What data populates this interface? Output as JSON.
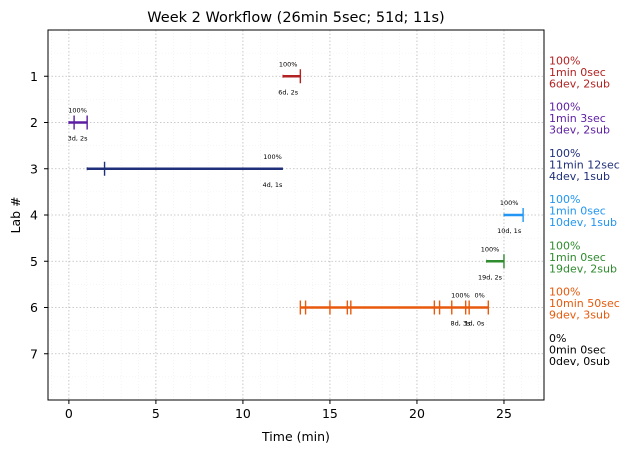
{
  "chart_data": {
    "type": "timeline",
    "title": "Week 2 Workflow (26min 5sec; 51d; 11s)",
    "xlabel": "Time (min)",
    "ylabel": "Lab #",
    "xlim": [
      -1.2,
      27.3
    ],
    "ylim": [
      8,
      0
    ],
    "xticks": [
      0,
      5,
      10,
      15,
      20,
      25
    ],
    "yticks": [
      1,
      2,
      3,
      4,
      5,
      6,
      7
    ],
    "grid": true,
    "labs": [
      {
        "lab": 1,
        "color": "#b22222",
        "start": 12.3,
        "end": 13.3,
        "markers": [
          13.3
        ],
        "pct_labels": [
          {
            "x": 12.6,
            "text": "100%"
          }
        ],
        "sub_labels": [
          {
            "x": 12.6,
            "text": "6d, 2s"
          }
        ],
        "side": [
          "100%",
          "1min 0sec",
          "6dev, 2sub"
        ]
      },
      {
        "lab": 2,
        "color": "#5b1ea2",
        "start": 0.0,
        "end": 1.05,
        "markers": [
          0.3,
          1.05
        ],
        "pct_labels": [
          {
            "x": 0.5,
            "text": "100%"
          }
        ],
        "sub_labels": [
          {
            "x": 0.5,
            "text": "3d, 2s"
          }
        ],
        "side": [
          "100%",
          "1min 3sec",
          "3dev, 2sub"
        ]
      },
      {
        "lab": 3,
        "color": "#1f2f7a",
        "start": 1.05,
        "end": 12.3,
        "markers": [
          2.05
        ],
        "pct_labels": [
          {
            "x": 11.7,
            "text": "100%"
          }
        ],
        "sub_labels": [
          {
            "x": 11.7,
            "text": "4d, 1s"
          }
        ],
        "side": [
          "100%",
          "11min 12sec",
          "4dev, 1sub"
        ]
      },
      {
        "lab": 4,
        "color": "#2196f3",
        "start": 25.0,
        "end": 26.1,
        "markers": [
          26.1
        ],
        "pct_labels": [
          {
            "x": 25.3,
            "text": "100%"
          }
        ],
        "sub_labels": [
          {
            "x": 25.3,
            "text": "10d, 1s"
          }
        ],
        "side": [
          "100%",
          "1min 0sec",
          "10dev, 1sub"
        ]
      },
      {
        "lab": 5,
        "color": "#2e8b2e",
        "start": 24.0,
        "end": 25.0,
        "markers": [
          25.0
        ],
        "pct_labels": [
          {
            "x": 24.2,
            "text": "100%"
          }
        ],
        "sub_labels": [
          {
            "x": 24.2,
            "text": "19d, 2s"
          }
        ],
        "side": [
          "100%",
          "1min 0sec",
          "19dev, 2sub"
        ]
      },
      {
        "lab": 6,
        "color": "#e8590c",
        "start": 13.3,
        "end": 24.1,
        "markers": [
          13.3,
          13.6,
          15.0,
          16.0,
          16.2,
          21.0,
          21.3,
          22.0,
          22.8,
          23.0,
          24.1
        ],
        "pct_labels": [
          {
            "x": 22.5,
            "text": "100%"
          },
          {
            "x": 23.6,
            "text": "0%"
          }
        ],
        "sub_labels": [
          {
            "x": 22.5,
            "text": "8d, 3s"
          },
          {
            "x": 23.3,
            "text": "1d, 0s"
          }
        ],
        "side": [
          "100%",
          "10min 50sec",
          "9dev, 3sub"
        ]
      },
      {
        "lab": 7,
        "color": "#000000",
        "start": null,
        "end": null,
        "markers": [],
        "pct_labels": [],
        "sub_labels": [],
        "side": [
          "0%",
          "0min 0sec",
          "0dev, 0sub"
        ]
      }
    ]
  }
}
